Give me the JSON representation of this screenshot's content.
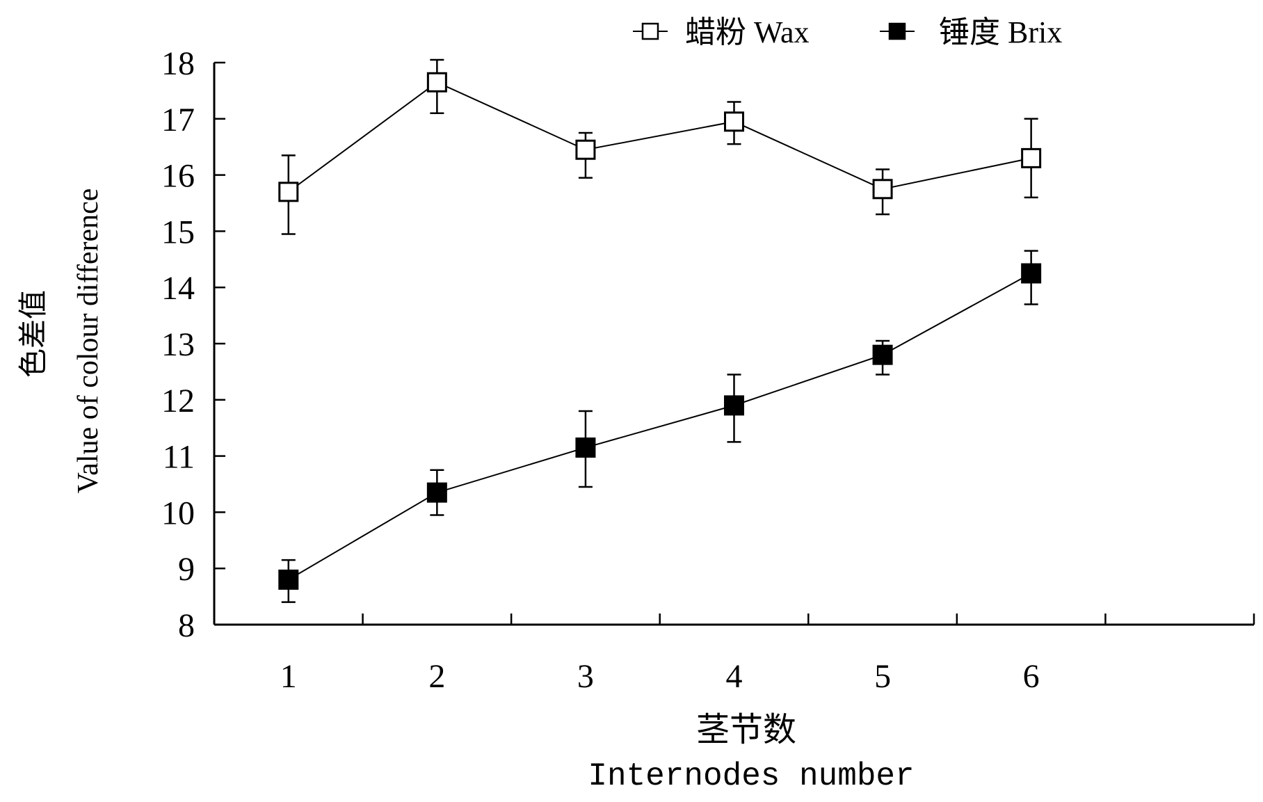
{
  "chart_data": {
    "type": "line",
    "categories": [
      1,
      2,
      3,
      4,
      5,
      6
    ],
    "x_ticks": [
      "1",
      "2",
      "3",
      "4",
      "5",
      "6"
    ],
    "y_ticks": [
      "8",
      "9",
      "10",
      "11",
      "12",
      "13",
      "14",
      "15",
      "16",
      "17",
      "18"
    ],
    "ylim": [
      8,
      18
    ],
    "xlabel_cn": "茎节数",
    "xlabel_en": "Internodes number",
    "ylabel_cn": "色差值",
    "ylabel_en": "Value of colour difference",
    "legend_position": "top-right",
    "grid": false,
    "series": [
      {
        "name": "蜡粉 Wax",
        "marker": "open-square",
        "values": [
          15.7,
          17.65,
          16.45,
          16.95,
          15.75,
          16.3
        ],
        "err_upper": [
          16.35,
          18.05,
          16.75,
          17.3,
          16.1,
          17.0
        ],
        "err_lower": [
          14.95,
          17.1,
          15.95,
          16.55,
          15.3,
          15.6
        ]
      },
      {
        "name": "锤度 Brix",
        "marker": "filled-square",
        "values": [
          8.8,
          10.35,
          11.15,
          11.9,
          12.8,
          14.25
        ],
        "err_upper": [
          9.15,
          10.75,
          11.8,
          12.45,
          13.05,
          14.65
        ],
        "err_lower": [
          8.4,
          9.95,
          10.45,
          11.25,
          12.45,
          13.7
        ]
      }
    ]
  },
  "colors": {
    "line": "#000000",
    "background": "#ffffff"
  }
}
